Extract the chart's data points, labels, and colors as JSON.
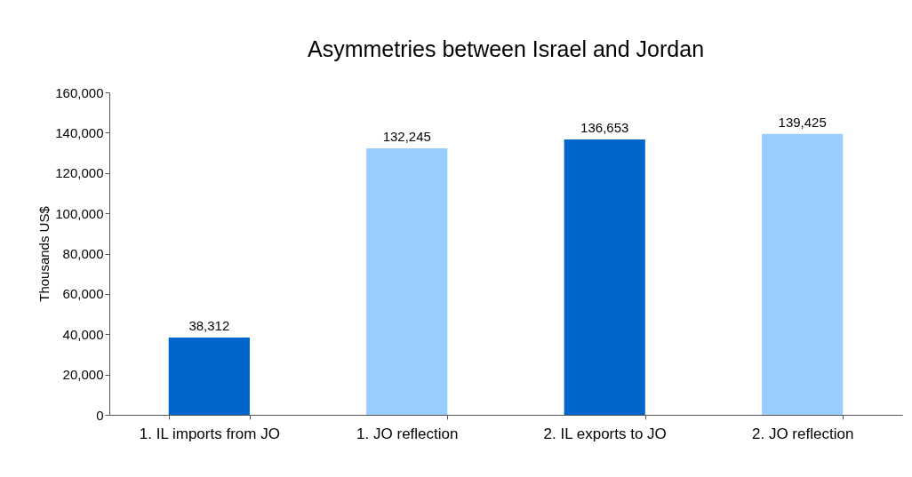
{
  "chart_data": {
    "type": "bar",
    "title": "Asymmetries between Israel and Jordan",
    "ylabel": "Thousands US$",
    "categories": [
      "1. IL imports from JO",
      "1. JO reflection",
      "2. IL exports  to JO",
      "2. JO reflection"
    ],
    "values": [
      38312,
      132245,
      136653,
      139425
    ],
    "value_labels": [
      "38,312",
      "132,245",
      "136,653",
      "139,425"
    ],
    "colors": [
      "#0066cc",
      "#99ccff",
      "#0066cc",
      "#99ccff"
    ],
    "ylim": [
      0,
      160000
    ],
    "yticks": [
      0,
      {
        "value": 20000,
        "label": "20,000"
      },
      {
        "value": 40000,
        "label": "40,000"
      },
      {
        "value": 60000,
        "label": "60,000"
      },
      {
        "value": 80000,
        "label": "80,000"
      },
      {
        "value": 100000,
        "label": "100,000"
      },
      {
        "value": 120000,
        "label": "120,000"
      },
      {
        "value": 140000,
        "label": "140,000"
      },
      {
        "value": 160000,
        "label": "160,000"
      }
    ],
    "grid": false
  }
}
